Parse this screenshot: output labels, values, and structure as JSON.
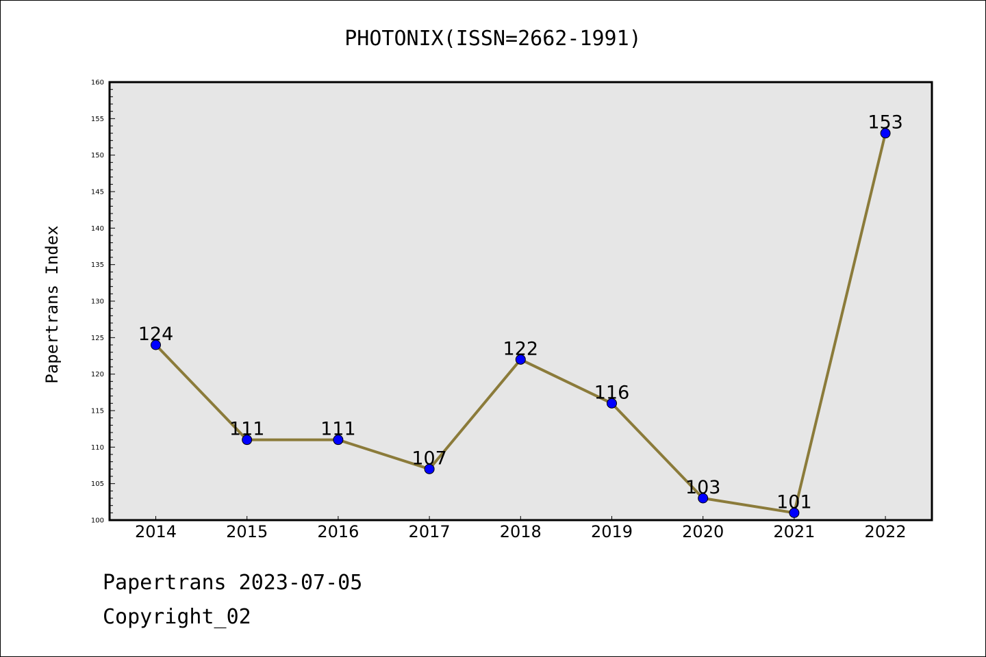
{
  "chart_data": {
    "type": "line",
    "title": "PHOTONIX(ISSN=2662-1991)",
    "xlabel": "",
    "ylabel": "Papertrans Index",
    "categories": [
      "2014",
      "2015",
      "2016",
      "2017",
      "2018",
      "2019",
      "2020",
      "2021",
      "2022"
    ],
    "series": [
      {
        "values": [
          124,
          111,
          111,
          107,
          122,
          116,
          103,
          101,
          153
        ]
      }
    ],
    "ylim": [
      100,
      160
    ],
    "yticks": [
      100,
      105,
      110,
      115,
      120,
      125,
      130,
      135,
      140,
      145,
      150,
      155,
      160
    ],
    "grid": false,
    "legend": "none",
    "data_labels": true,
    "colors": {
      "line": "#8B7B3A",
      "marker": "#0000FF",
      "plot_background": "#E6E6E6"
    }
  },
  "footer": {
    "line1": "Papertrans 2023-07-05",
    "line2": "Copyright_02"
  }
}
